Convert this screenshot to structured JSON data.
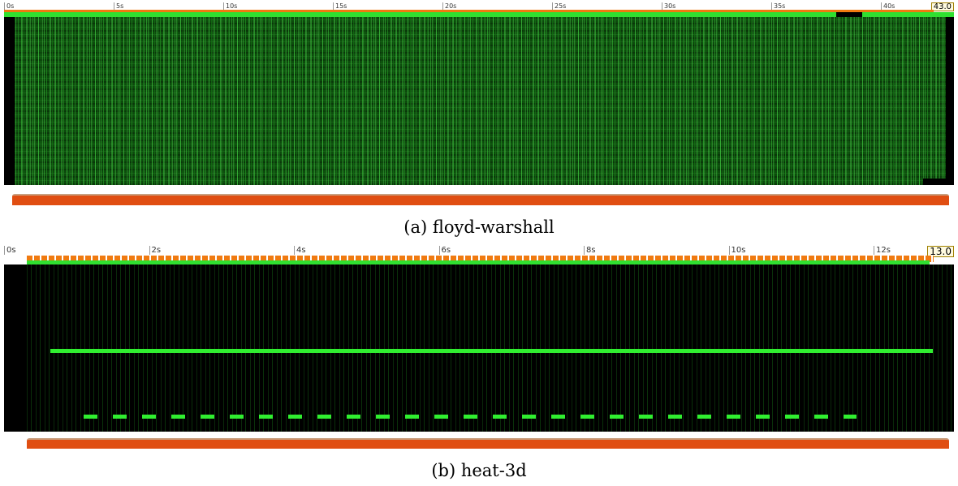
{
  "panels": [
    {
      "ticks": [
        "0s",
        "5s",
        "10s",
        "15s",
        "20s",
        "25s",
        "30s",
        "35s",
        "40s"
      ],
      "end_label": "43.0",
      "caption": "(a) floyd-warshall"
    },
    {
      "ticks": [
        "0s",
        "2s",
        "4s",
        "6s",
        "8s",
        "10s",
        "12s"
      ],
      "end_label": "13.0",
      "caption": "(b) heat-3d"
    }
  ]
}
